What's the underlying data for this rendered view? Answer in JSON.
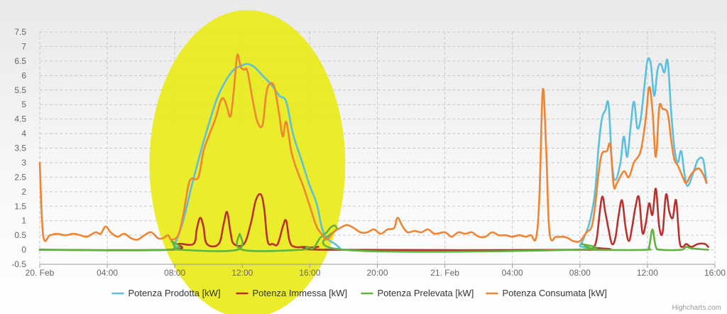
{
  "chart_data": {
    "type": "line",
    "title": "",
    "xlabel": "",
    "ylabel": "",
    "ylim": [
      -0.5,
      7.5
    ],
    "yticks": [
      "-0.5",
      "0",
      "0.5",
      "1",
      "1.5",
      "2",
      "2.5",
      "3",
      "3.5",
      "4",
      "4.5",
      "5",
      "5.5",
      "6",
      "6.5",
      "7",
      "7.5"
    ],
    "x_range_hours": [
      0,
      40
    ],
    "xticks": [
      {
        "h": 0,
        "label": "20. Feb"
      },
      {
        "h": 4,
        "label": "04:00"
      },
      {
        "h": 8,
        "label": "08:00"
      },
      {
        "h": 12,
        "label": "12:00"
      },
      {
        "h": 16,
        "label": "16:00"
      },
      {
        "h": 20,
        "label": "20:00"
      },
      {
        "h": 24,
        "label": "21. Feb"
      },
      {
        "h": 28,
        "label": "04:00"
      },
      {
        "h": 32,
        "label": "08:00"
      },
      {
        "h": 36,
        "label": "12:00"
      },
      {
        "h": 40,
        "label": "16:00"
      }
    ],
    "grid": true,
    "legend_position": "bottom-center",
    "highlight": {
      "shape": "ellipse",
      "color": "#e8ea1a",
      "center_h": 12.3,
      "center_y": 2.95,
      "radius_h": 5.8,
      "radius_y": 5.3
    },
    "series": [
      {
        "name": "Potenza Prodotta [kW]",
        "color": "#5bc0de",
        "points": [
          [
            0,
            0
          ],
          [
            7.7,
            0
          ],
          [
            8,
            0.2
          ],
          [
            8.5,
            1
          ],
          [
            9,
            2.2
          ],
          [
            9.5,
            3.3
          ],
          [
            10,
            4.3
          ],
          [
            10.5,
            5.2
          ],
          [
            11,
            5.8
          ],
          [
            11.5,
            6.2
          ],
          [
            12,
            6.35
          ],
          [
            12.3,
            6.4
          ],
          [
            12.7,
            6.3
          ],
          [
            13.2,
            6
          ],
          [
            13.7,
            5.7
          ],
          [
            14.2,
            5.3
          ],
          [
            14.6,
            5.1
          ],
          [
            15,
            4
          ],
          [
            15.5,
            3.1
          ],
          [
            16,
            2.2
          ],
          [
            16.4,
            1.6
          ],
          [
            16.7,
            0.8
          ],
          [
            17,
            0.4
          ],
          [
            17.5,
            0.2
          ],
          [
            17.8,
            0.05
          ],
          [
            18,
            0
          ],
          [
            31.5,
            0
          ],
          [
            32,
            0.15
          ],
          [
            32.3,
            0.5
          ],
          [
            32.6,
            1
          ],
          [
            32.9,
            2
          ],
          [
            33.1,
            3.5
          ],
          [
            33.3,
            4.5
          ],
          [
            33.5,
            4.8
          ],
          [
            33.7,
            5
          ],
          [
            33.9,
            3
          ],
          [
            34.1,
            2.4
          ],
          [
            34.4,
            3
          ],
          [
            34.6,
            3.9
          ],
          [
            34.8,
            3.2
          ],
          [
            35,
            4.2
          ],
          [
            35.2,
            5.1
          ],
          [
            35.4,
            4.2
          ],
          [
            35.6,
            4.5
          ],
          [
            35.8,
            5.5
          ],
          [
            36,
            6.5
          ],
          [
            36.2,
            6.4
          ],
          [
            36.4,
            5.3
          ],
          [
            36.6,
            6.2
          ],
          [
            36.8,
            6.4
          ],
          [
            37,
            6.1
          ],
          [
            37.2,
            6.5
          ],
          [
            37.4,
            4.8
          ],
          [
            37.6,
            3.5
          ],
          [
            37.8,
            3
          ],
          [
            38,
            3.4
          ],
          [
            38.2,
            2.6
          ],
          [
            38.4,
            2.2
          ],
          [
            38.8,
            2.8
          ],
          [
            39,
            3.1
          ],
          [
            39.3,
            3.1
          ],
          [
            39.5,
            2.3
          ]
        ]
      },
      {
        "name": "Potenza Immessa [kW]",
        "color": "#b8312f",
        "points": [
          [
            0,
            0
          ],
          [
            7.7,
            0
          ],
          [
            8.2,
            0.2
          ],
          [
            9.1,
            0.2
          ],
          [
            9.3,
            0.7
          ],
          [
            9.5,
            1.1
          ],
          [
            9.7,
            0.8
          ],
          [
            9.9,
            0.2
          ],
          [
            10.6,
            0.2
          ],
          [
            10.9,
            0.9
          ],
          [
            11.1,
            1.3
          ],
          [
            11.3,
            0.6
          ],
          [
            11.5,
            0.2
          ],
          [
            12.1,
            0.2
          ],
          [
            12.5,
            0.9
          ],
          [
            12.8,
            1.7
          ],
          [
            13.1,
            1.9
          ],
          [
            13.3,
            1.4
          ],
          [
            13.5,
            0.3
          ],
          [
            13.8,
            0.2
          ],
          [
            14.1,
            0.2
          ],
          [
            14.4,
            0.8
          ],
          [
            14.6,
            1
          ],
          [
            14.8,
            0.3
          ],
          [
            15.1,
            0.1
          ],
          [
            15.8,
            0.1
          ],
          [
            16.2,
            0.05
          ],
          [
            16.5,
            0.1
          ],
          [
            17,
            0
          ],
          [
            32.5,
            0
          ],
          [
            32.8,
            0.1
          ],
          [
            33,
            0.4
          ],
          [
            33.3,
            1.8
          ],
          [
            33.5,
            1.3
          ],
          [
            33.7,
            0.7
          ],
          [
            33.9,
            0.2
          ],
          [
            34.1,
            0.4
          ],
          [
            34.3,
            1.2
          ],
          [
            34.5,
            1.7
          ],
          [
            34.7,
            0.8
          ],
          [
            34.9,
            0.3
          ],
          [
            35.1,
            0.8
          ],
          [
            35.3,
            1.5
          ],
          [
            35.5,
            1.8
          ],
          [
            35.7,
            0.6
          ],
          [
            35.9,
            0.9
          ],
          [
            36.1,
            1.6
          ],
          [
            36.3,
            1.2
          ],
          [
            36.5,
            2.1
          ],
          [
            36.7,
            0.8
          ],
          [
            36.9,
            0.6
          ],
          [
            37.1,
            1.9
          ],
          [
            37.3,
            1.3
          ],
          [
            37.5,
            1.1
          ],
          [
            37.7,
            1.7
          ],
          [
            37.9,
            0.3
          ],
          [
            38.1,
            0.1
          ],
          [
            38.3,
            0.2
          ],
          [
            38.6,
            0.1
          ],
          [
            39,
            0.2
          ],
          [
            39.4,
            0.2
          ],
          [
            39.6,
            0.1
          ]
        ]
      },
      {
        "name": "Potenza Prelevata [kW]",
        "color": "#5fb53c",
        "points": [
          [
            0,
            0
          ],
          [
            7.6,
            0
          ],
          [
            7.8,
            0.3
          ],
          [
            8,
            0.1
          ],
          [
            8.3,
            0
          ],
          [
            11.7,
            0
          ],
          [
            11.85,
            0.55
          ],
          [
            12,
            0
          ],
          [
            15.5,
            0
          ],
          [
            15.8,
            0.1
          ],
          [
            16.2,
            0.05
          ],
          [
            16.6,
            0.4
          ],
          [
            17,
            0.6
          ],
          [
            17.3,
            0.8
          ],
          [
            17.6,
            0.75
          ],
          [
            18,
            0
          ],
          [
            31.8,
            0
          ],
          [
            32.1,
            0.2
          ],
          [
            32.4,
            0.1
          ],
          [
            32.7,
            0.05
          ],
          [
            33,
            0
          ],
          [
            35.9,
            0
          ],
          [
            36.1,
            0.1
          ],
          [
            36.3,
            0.7
          ],
          [
            36.5,
            0.1
          ],
          [
            36.8,
            0
          ],
          [
            38,
            0
          ],
          [
            38.3,
            0.1
          ],
          [
            38.6,
            0.05
          ],
          [
            39.6,
            0
          ]
        ]
      },
      {
        "name": "Potenza Consumata [kW]",
        "color": "#ef8533",
        "points": [
          [
            0,
            3
          ],
          [
            0.2,
            0.5
          ],
          [
            0.6,
            0.5
          ],
          [
            1,
            0.55
          ],
          [
            1.5,
            0.5
          ],
          [
            2,
            0.55
          ],
          [
            2.4,
            0.5
          ],
          [
            2.8,
            0.45
          ],
          [
            3.3,
            0.6
          ],
          [
            3.6,
            0.55
          ],
          [
            3.9,
            0.8
          ],
          [
            4.2,
            0.6
          ],
          [
            4.6,
            0.45
          ],
          [
            5,
            0.55
          ],
          [
            5.4,
            0.4
          ],
          [
            5.8,
            0.35
          ],
          [
            6.2,
            0.5
          ],
          [
            6.6,
            0.6
          ],
          [
            7,
            0.4
          ],
          [
            7.3,
            0.4
          ],
          [
            7.6,
            0.5
          ],
          [
            7.8,
            0.35
          ],
          [
            8.2,
            0.5
          ],
          [
            8.5,
            1.2
          ],
          [
            8.8,
            2.2
          ],
          [
            9,
            2.45
          ],
          [
            9.4,
            2.5
          ],
          [
            9.7,
            3.4
          ],
          [
            10,
            3.9
          ],
          [
            10.4,
            4.5
          ],
          [
            10.7,
            5.1
          ],
          [
            10.9,
            5.2
          ],
          [
            11.1,
            4.9
          ],
          [
            11.3,
            4.6
          ],
          [
            11.5,
            5.5
          ],
          [
            11.7,
            6.7
          ],
          [
            11.9,
            6.3
          ],
          [
            12.1,
            6.2
          ],
          [
            12.3,
            6.15
          ],
          [
            12.6,
            5.2
          ],
          [
            12.9,
            4.4
          ],
          [
            13.2,
            4.3
          ],
          [
            13.4,
            5.3
          ],
          [
            13.6,
            5.7
          ],
          [
            13.9,
            5.6
          ],
          [
            14.2,
            4.6
          ],
          [
            14.4,
            3.9
          ],
          [
            14.6,
            4.4
          ],
          [
            14.9,
            3.4
          ],
          [
            15.2,
            2.8
          ],
          [
            15.6,
            2.2
          ],
          [
            16,
            1.5
          ],
          [
            16.4,
            0.8
          ],
          [
            16.7,
            0.55
          ],
          [
            17,
            0.35
          ],
          [
            17.4,
            0.6
          ],
          [
            17.8,
            0.75
          ],
          [
            18.2,
            0.85
          ],
          [
            18.6,
            0.75
          ],
          [
            19,
            0.6
          ],
          [
            19.4,
            0.6
          ],
          [
            19.8,
            0.7
          ],
          [
            20.2,
            0.55
          ],
          [
            20.6,
            0.7
          ],
          [
            21,
            0.75
          ],
          [
            21.2,
            1.1
          ],
          [
            21.5,
            0.8
          ],
          [
            21.8,
            0.6
          ],
          [
            22.2,
            0.65
          ],
          [
            22.6,
            0.6
          ],
          [
            23,
            0.7
          ],
          [
            23.4,
            0.55
          ],
          [
            24,
            0.6
          ],
          [
            24.4,
            0.45
          ],
          [
            24.8,
            0.6
          ],
          [
            25.2,
            0.55
          ],
          [
            25.6,
            0.6
          ],
          [
            26,
            0.45
          ],
          [
            26.4,
            0.45
          ],
          [
            26.8,
            0.6
          ],
          [
            27.2,
            0.5
          ],
          [
            27.6,
            0.5
          ],
          [
            28,
            0.45
          ],
          [
            28.4,
            0.5
          ],
          [
            28.8,
            0.45
          ],
          [
            29.1,
            0.5
          ],
          [
            29.4,
            0.4
          ],
          [
            29.6,
            1.8
          ],
          [
            29.8,
            5.5
          ],
          [
            30,
            3.5
          ],
          [
            30.2,
            0.6
          ],
          [
            30.6,
            0.45
          ],
          [
            31,
            0.45
          ],
          [
            31.3,
            0.4
          ],
          [
            31.6,
            0.3
          ],
          [
            32,
            0.3
          ],
          [
            32.4,
            0.6
          ],
          [
            32.7,
            0.8
          ],
          [
            32.9,
            1.5
          ],
          [
            33.1,
            2.6
          ],
          [
            33.3,
            3.3
          ],
          [
            33.6,
            3.4
          ],
          [
            33.8,
            3.6
          ],
          [
            34,
            2.2
          ],
          [
            34.2,
            2.3
          ],
          [
            34.6,
            2.7
          ],
          [
            34.9,
            2.5
          ],
          [
            35.2,
            3
          ],
          [
            35.6,
            3.4
          ],
          [
            35.9,
            4.5
          ],
          [
            36.1,
            5.6
          ],
          [
            36.3,
            4.8
          ],
          [
            36.5,
            3.2
          ],
          [
            36.7,
            4.9
          ],
          [
            36.9,
            4.85
          ],
          [
            37.2,
            4.7
          ],
          [
            37.4,
            3.8
          ],
          [
            37.6,
            3.1
          ],
          [
            37.8,
            2.9
          ],
          [
            38.1,
            2.5
          ],
          [
            38.3,
            2.3
          ],
          [
            38.6,
            2.6
          ],
          [
            39,
            2.8
          ],
          [
            39.3,
            2.6
          ],
          [
            39.5,
            2.3
          ]
        ]
      }
    ],
    "credits": "Highcharts.com"
  }
}
